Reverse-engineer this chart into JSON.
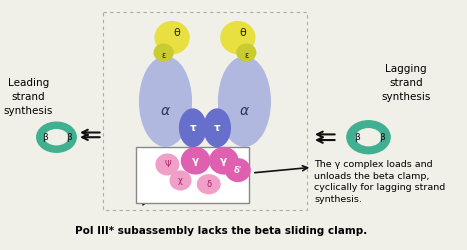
{
  "bg_color": "#f0f0e8",
  "border_color": "#aaaaaa",
  "title_bottom": "Pol III* subassembly lacks the beta sliding clamp.",
  "leading_text": "Leading\nstrand\nsynthesis",
  "lagging_text": "Lagging\nstrand\nsynthesis",
  "annotation_text": "The γ complex loads and\nunloads the beta clamp,\ncyclically for lagging strand\nsynthesis.",
  "colors": {
    "alpha": "#b0b8e0",
    "tau": "#6670cc",
    "theta": "#e8e040",
    "epsilon": "#c8cc30",
    "gamma": "#e060b0",
    "psi": "#f0a0c8",
    "chi": "#f0a0c8",
    "delta": "#f0a0c8",
    "delta_prime": "#e060b0",
    "beta_teal": "#40b090",
    "box_border": "#888888",
    "arrow_color": "#111111"
  }
}
